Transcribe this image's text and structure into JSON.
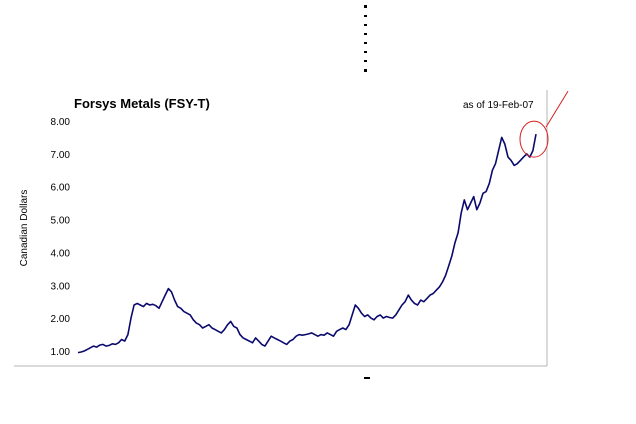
{
  "chart_data": {
    "type": "line",
    "title": "Forsys Metals (FSY-T)",
    "subtitle": "as of 19-Feb-07",
    "xlabel": "",
    "ylabel": "Canadian Dollars",
    "ylim": [
      1.0,
      8.0
    ],
    "yticks": [
      "1.00",
      "2.00",
      "3.00",
      "4.00",
      "5.00",
      "6.00",
      "7.00",
      "8.00"
    ],
    "grid": false,
    "legend": "none",
    "colors": {
      "series": "#0a0a6e",
      "annotation": "#d62020"
    },
    "series": [
      {
        "values": [
          0.95,
          0.97,
          1.0,
          1.05,
          1.1,
          1.15,
          1.12,
          1.18,
          1.2,
          1.15,
          1.17,
          1.22,
          1.2,
          1.25,
          1.35,
          1.3,
          1.5,
          2.0,
          2.4,
          2.45,
          2.4,
          2.35,
          2.45,
          2.4,
          2.42,
          2.38,
          2.3,
          2.5,
          2.7,
          2.9,
          2.8,
          2.55,
          2.35,
          2.3,
          2.2,
          2.15,
          2.1,
          1.95,
          1.85,
          1.8,
          1.7,
          1.75,
          1.8,
          1.7,
          1.65,
          1.6,
          1.55,
          1.65,
          1.8,
          1.9,
          1.75,
          1.7,
          1.5,
          1.4,
          1.35,
          1.3,
          1.25,
          1.4,
          1.3,
          1.2,
          1.15,
          1.3,
          1.45,
          1.4,
          1.35,
          1.3,
          1.25,
          1.2,
          1.3,
          1.35,
          1.45,
          1.5,
          1.48,
          1.5,
          1.52,
          1.55,
          1.5,
          1.45,
          1.5,
          1.48,
          1.55,
          1.5,
          1.45,
          1.6,
          1.65,
          1.7,
          1.65,
          1.8,
          2.1,
          2.4,
          2.3,
          2.15,
          2.05,
          2.1,
          2.0,
          1.95,
          2.05,
          2.1,
          2.0,
          2.05,
          2.02,
          2.0,
          2.1,
          2.25,
          2.4,
          2.5,
          2.7,
          2.55,
          2.45,
          2.4,
          2.55,
          2.5,
          2.6,
          2.7,
          2.75,
          2.85,
          2.95,
          3.1,
          3.3,
          3.6,
          3.9,
          4.3,
          4.6,
          5.2,
          5.6,
          5.3,
          5.5,
          5.7,
          5.3,
          5.5,
          5.8,
          5.85,
          6.1,
          6.5,
          6.7,
          7.1,
          7.5,
          7.3,
          6.9,
          6.8,
          6.65,
          6.7,
          6.8,
          6.9,
          7.0,
          6.9,
          7.1,
          7.6
        ]
      }
    ],
    "annotation": {
      "type": "circled-endpoint-with-pointer-line"
    }
  }
}
